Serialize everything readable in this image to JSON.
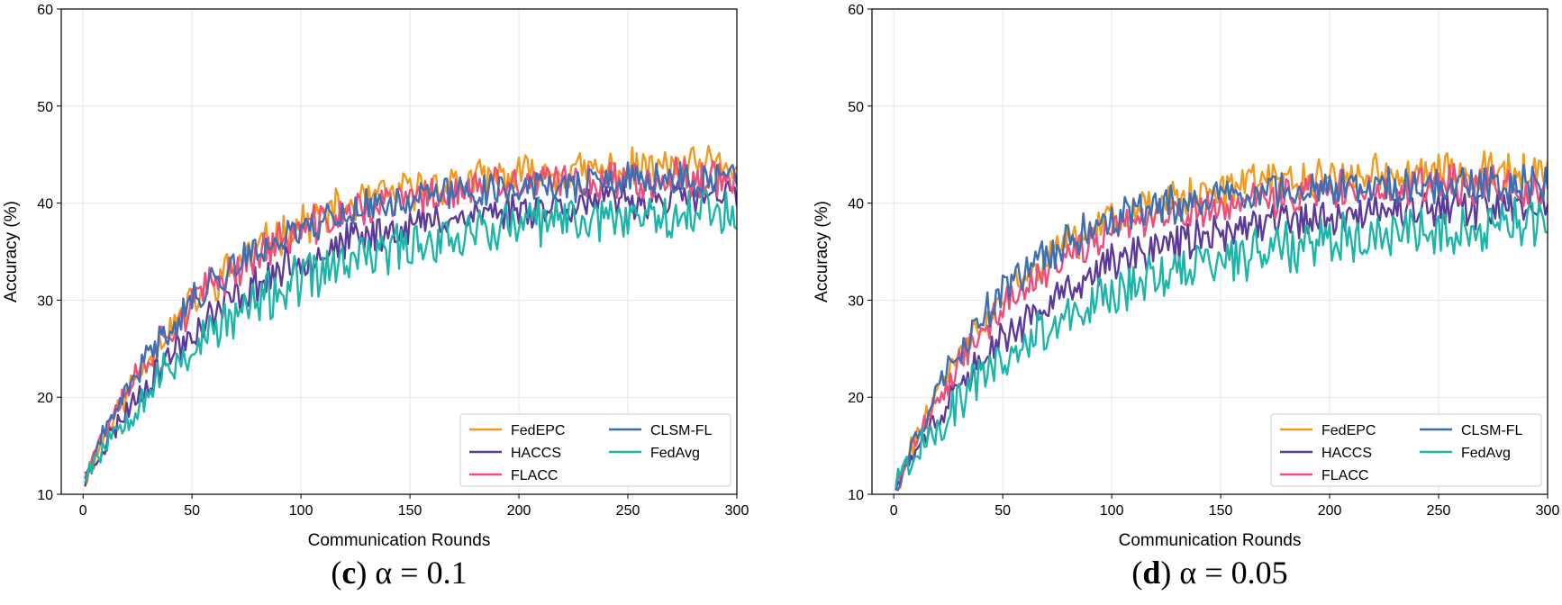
{
  "chart_data": [
    {
      "type": "line",
      "caption_label": "c",
      "caption_alpha": "α = 0.1",
      "xlabel": "Communication Rounds",
      "ylabel": "Accuracy (%)",
      "xlim": [
        -10,
        300
      ],
      "ylim": [
        10,
        60
      ],
      "xticks": [
        0,
        50,
        100,
        150,
        200,
        250,
        300
      ],
      "yticks": [
        10,
        20,
        30,
        40,
        50,
        60
      ],
      "grid": true,
      "legend_position": "lower-right",
      "series": [
        {
          "name": "FedEPC",
          "color": "#f29a1f",
          "start": 11,
          "plateau": 44.0,
          "tau": 60,
          "amp": 1.8,
          "seed": 11
        },
        {
          "name": "HACCS",
          "color": "#5b3a9a",
          "start": 11,
          "plateau": 41.0,
          "tau": 68,
          "amp": 1.7,
          "seed": 23
        },
        {
          "name": "FLACC",
          "color": "#ef4e7b",
          "start": 12,
          "plateau": 43.0,
          "tau": 60,
          "amp": 1.8,
          "seed": 37
        },
        {
          "name": "CLSM-FL",
          "color": "#3e6fb0",
          "start": 11,
          "plateau": 42.5,
          "tau": 55,
          "amp": 1.6,
          "seed": 41
        },
        {
          "name": "FedAvg",
          "color": "#1db5a8",
          "start": 12,
          "plateau": 40.0,
          "tau": 80,
          "amp": 2.3,
          "seed": 53
        }
      ]
    },
    {
      "type": "line",
      "caption_label": "d",
      "caption_alpha": "α = 0.05",
      "xlabel": "Communication Rounds",
      "ylabel": "Accuracy (%)",
      "xlim": [
        -10,
        300
      ],
      "ylim": [
        10,
        60
      ],
      "xticks": [
        0,
        50,
        100,
        150,
        200,
        250,
        300
      ],
      "yticks": [
        10,
        20,
        30,
        40,
        50,
        60
      ],
      "grid": true,
      "legend_position": "lower-right",
      "series": [
        {
          "name": "FedEPC",
          "color": "#f29a1f",
          "start": 10,
          "plateau": 43.5,
          "tau": 55,
          "amp": 1.8,
          "seed": 61
        },
        {
          "name": "HACCS",
          "color": "#5b3a9a",
          "start": 10,
          "plateau": 40.0,
          "tau": 65,
          "amp": 1.8,
          "seed": 73
        },
        {
          "name": "FLACC",
          "color": "#ef4e7b",
          "start": 10,
          "plateau": 42.0,
          "tau": 55,
          "amp": 1.8,
          "seed": 89
        },
        {
          "name": "CLSM-FL",
          "color": "#3e6fb0",
          "start": 10,
          "plateau": 42.0,
          "tau": 48,
          "amp": 1.7,
          "seed": 97
        },
        {
          "name": "FedAvg",
          "color": "#1db5a8",
          "start": 11,
          "plateau": 38.5,
          "tau": 80,
          "amp": 2.4,
          "seed": 101
        }
      ]
    }
  ]
}
